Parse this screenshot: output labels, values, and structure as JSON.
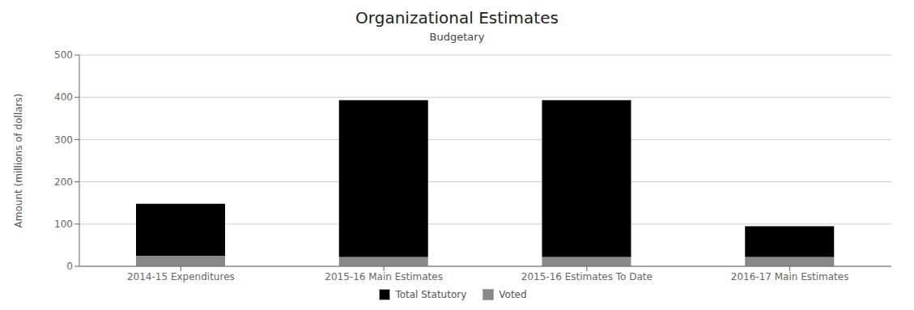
{
  "chart_data": {
    "type": "bar",
    "title": "Organizational Estimates",
    "subtitle": "Budgetary",
    "ylabel": "Amount (millions of dollars)",
    "categories": [
      "2014-15 Expenditures",
      "2015-16 Main Estimates",
      "2015-16 Estimates To Date",
      "2016-17 Main Estimates"
    ],
    "series": [
      {
        "name": "Voted",
        "color": "#888888",
        "values": [
          25,
          22,
          22,
          22
        ]
      },
      {
        "name": "Total Statutory",
        "color": "#000000",
        "values": [
          123,
          371,
          371,
          73
        ]
      }
    ],
    "stacked": true,
    "ylim": [
      0,
      500
    ],
    "yticks": [
      0,
      100,
      200,
      300,
      400,
      500
    ],
    "grid": true,
    "legend": "bottom"
  }
}
